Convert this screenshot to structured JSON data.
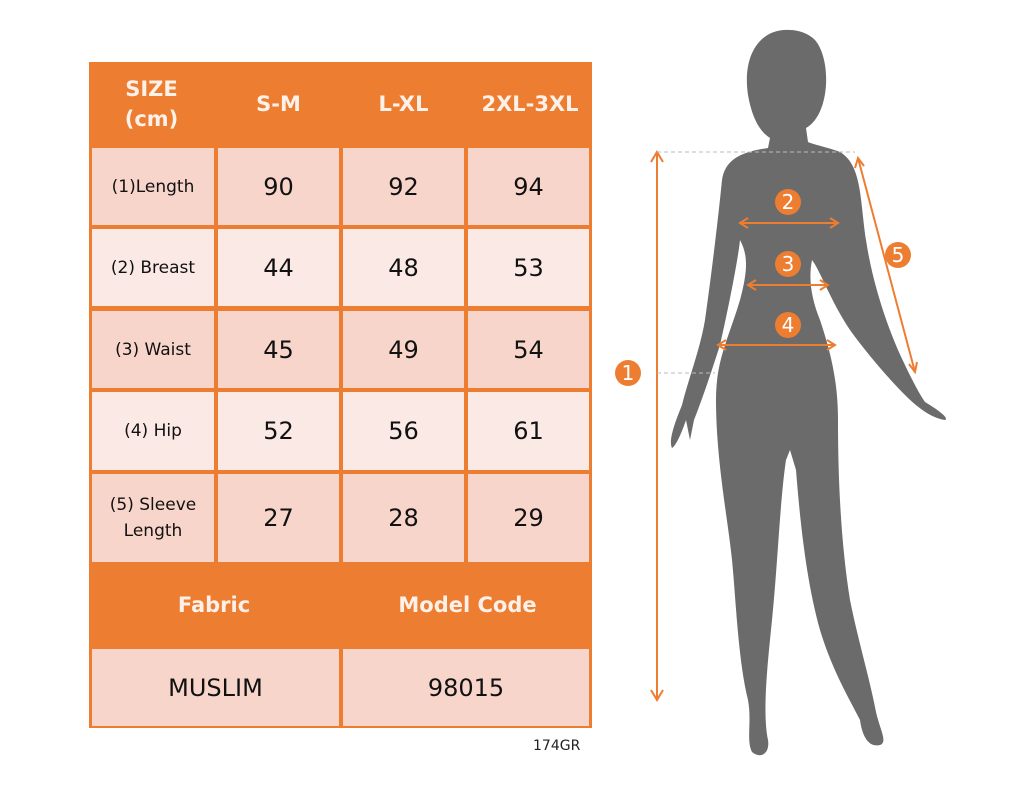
{
  "table": {
    "header": [
      "SIZE\n(cm)",
      "S-M",
      "L-XL",
      "2XL-3XL"
    ],
    "header_lines": [
      "SIZE",
      "(cm)"
    ],
    "rows": [
      {
        "label": "(1)Length",
        "values": [
          "90",
          "92",
          "94"
        ]
      },
      {
        "label": "(2) Breast",
        "values": [
          "44",
          "48",
          "53"
        ]
      },
      {
        "label": "(3) Waist",
        "values": [
          "45",
          "49",
          "54"
        ]
      },
      {
        "label": "(4) Hip",
        "values": [
          "52",
          "56",
          "61"
        ]
      },
      {
        "label_lines": [
          "(5) Sleeve",
          "Length"
        ],
        "values": [
          "27",
          "28",
          "29"
        ]
      }
    ],
    "footer_headers": [
      "Fabric",
      "Model Code"
    ],
    "footer_values": [
      "MUSLIM",
      "98015"
    ]
  },
  "code_label": "174GR",
  "figure": {
    "markers": [
      "1",
      "2",
      "3",
      "4",
      "5"
    ]
  },
  "colors": {
    "accent": "#ED7D31",
    "cell_dark": "#F8D5CB",
    "cell_light": "#FBE9E5",
    "silhouette": "#6B6B6B"
  }
}
